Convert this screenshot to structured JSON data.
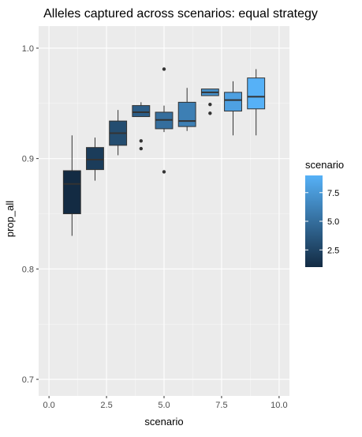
{
  "chart_data": {
    "type": "boxplot",
    "title": "Alleles captured across scenarios: equal strategy",
    "xlabel": "scenario",
    "ylabel": "prop_all",
    "xlim": [
      -0.45,
      10.45
    ],
    "ylim": [
      0.685,
      1.02
    ],
    "x_ticks": [
      {
        "value": 0,
        "label": "0.0"
      },
      {
        "value": 2.5,
        "label": "2.5"
      },
      {
        "value": 5,
        "label": "5.0"
      },
      {
        "value": 7.5,
        "label": "7.5"
      },
      {
        "value": 10,
        "label": "10.0"
      }
    ],
    "y_ticks": [
      {
        "value": 0.7,
        "label": "0.7"
      },
      {
        "value": 0.8,
        "label": "0.8"
      },
      {
        "value": 0.9,
        "label": "0.9"
      },
      {
        "value": 1.0,
        "label": "1.0"
      }
    ],
    "grid": true,
    "legend": {
      "title": "scenario",
      "placement": "right",
      "type": "colorbar",
      "range": [
        1,
        9
      ],
      "low_color": "#132b43",
      "high_color": "#56b1f7",
      "ticks": [
        {
          "value": 2.5,
          "label": "2.5"
        },
        {
          "value": 5,
          "label": "5.0"
        },
        {
          "value": 7.5,
          "label": "7.5"
        }
      ]
    },
    "boxes": [
      {
        "scenario": 1,
        "whisker_low": 0.83,
        "q1": 0.85,
        "median": 0.877,
        "q3": 0.889,
        "whisker_high": 0.921,
        "outliers": []
      },
      {
        "scenario": 2,
        "whisker_low": 0.88,
        "q1": 0.89,
        "median": 0.899,
        "q3": 0.91,
        "whisker_high": 0.919,
        "outliers": []
      },
      {
        "scenario": 3,
        "whisker_low": 0.903,
        "q1": 0.912,
        "median": 0.923,
        "q3": 0.934,
        "whisker_high": 0.944,
        "outliers": []
      },
      {
        "scenario": 4,
        "whisker_low": 0.938,
        "q1": 0.938,
        "median": 0.942,
        "q3": 0.948,
        "whisker_high": 0.951,
        "outliers": [
          0.916,
          0.909
        ]
      },
      {
        "scenario": 5,
        "whisker_low": 0.924,
        "q1": 0.927,
        "median": 0.935,
        "q3": 0.942,
        "whisker_high": 0.948,
        "outliers": [
          0.981,
          0.888
        ]
      },
      {
        "scenario": 6,
        "whisker_low": 0.925,
        "q1": 0.929,
        "median": 0.934,
        "q3": 0.951,
        "whisker_high": 0.964,
        "outliers": []
      },
      {
        "scenario": 7,
        "whisker_low": 0.957,
        "q1": 0.957,
        "median": 0.96,
        "q3": 0.963,
        "whisker_high": 0.963,
        "outliers": [
          0.949,
          0.941
        ]
      },
      {
        "scenario": 8,
        "whisker_low": 0.921,
        "q1": 0.943,
        "median": 0.953,
        "q3": 0.96,
        "whisker_high": 0.97,
        "outliers": []
      },
      {
        "scenario": 9,
        "whisker_low": 0.921,
        "q1": 0.945,
        "median": 0.956,
        "q3": 0.973,
        "whisker_high": 0.981,
        "outliers": []
      }
    ],
    "colors": {
      "panel_background": "#ebebeb",
      "grid_major": "#ffffff",
      "box_outline": "#333333",
      "outlier": "#333333"
    }
  }
}
